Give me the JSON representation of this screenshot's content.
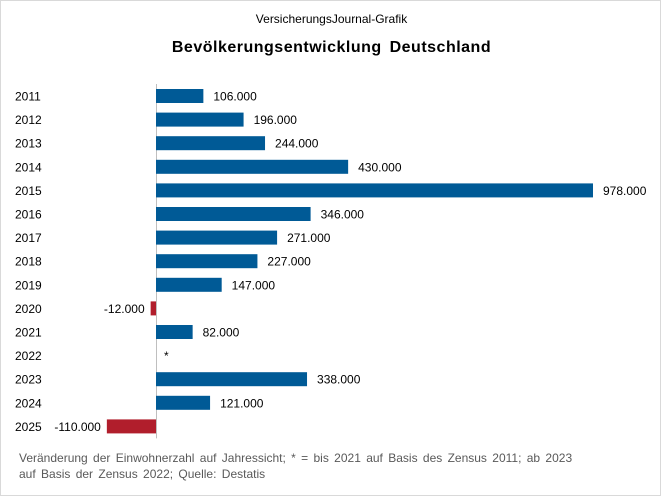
{
  "header": {
    "source": "VersicherungsJournal-Grafik"
  },
  "footnote": {
    "line1": "Veränderung der Einwohnerzahl auf Jahressicht; * = bis 2021 auf Basis des Zensus 2011; ab 2023",
    "line2": "auf Basis der Zensus 2022; Quelle: Destatis"
  },
  "colors": {
    "positive": "#005A96",
    "negative": "#B11E2C",
    "axis": "#bfbfbf"
  },
  "chart_data": {
    "type": "bar",
    "orientation": "horizontal",
    "title": "Bevölkerungsentwicklung Deutschland",
    "categories": [
      "2011",
      "2012",
      "2013",
      "2014",
      "2015",
      "2016",
      "2017",
      "2018",
      "2019",
      "2020",
      "2021",
      "2022",
      "2023",
      "2024",
      "2025"
    ],
    "values": [
      106000,
      196000,
      244000,
      430000,
      978000,
      346000,
      271000,
      227000,
      147000,
      -12000,
      82000,
      null,
      338000,
      121000,
      -110000
    ],
    "data_labels": [
      "106.000",
      "196.000",
      "244.000",
      "430.000",
      "978.000",
      "346.000",
      "271.000",
      "227.000",
      "147.000",
      "-12.000",
      "82.000",
      "*",
      "338.000",
      "121.000",
      "-110.000"
    ],
    "xlabel": "",
    "ylabel": "",
    "grid": false,
    "legend": "none"
  }
}
